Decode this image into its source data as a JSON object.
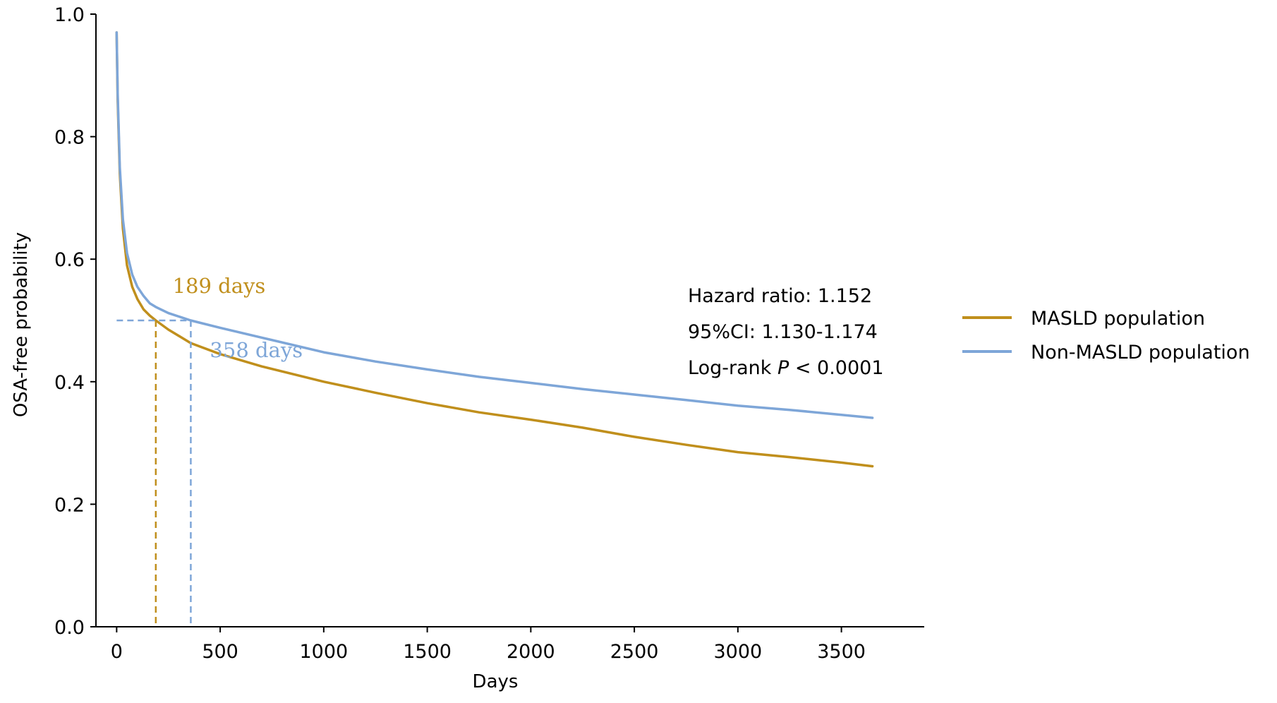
{
  "chart_data": {
    "type": "line",
    "xlabel": "Days",
    "ylabel": "OSA-free probability",
    "xlim": [
      -100,
      3900
    ],
    "ylim": [
      0.0,
      1.0
    ],
    "x_ticks": [
      0,
      500,
      1000,
      1500,
      2000,
      2500,
      3000,
      3500
    ],
    "y_ticks": [
      0.0,
      0.2,
      0.4,
      0.6,
      0.8,
      1.0
    ],
    "x_tick_labels": [
      "0",
      "500",
      "1000",
      "1500",
      "2000",
      "2500",
      "3000",
      "3500"
    ],
    "y_tick_labels": [
      "0.0",
      "0.2",
      "0.4",
      "0.6",
      "0.8",
      "1.0"
    ],
    "grid": false,
    "legend_position": "right",
    "series": [
      {
        "name": "MASLD population",
        "color": "#c08f1c",
        "x": [
          0,
          5,
          15,
          30,
          50,
          75,
          100,
          130,
          160,
          189,
          250,
          358,
          500,
          700,
          1000,
          1250,
          1500,
          1750,
          2000,
          2250,
          2500,
          2750,
          3000,
          3250,
          3500,
          3650
        ],
        "y": [
          0.97,
          0.86,
          0.74,
          0.65,
          0.59,
          0.555,
          0.535,
          0.518,
          0.508,
          0.5,
          0.485,
          0.463,
          0.445,
          0.425,
          0.4,
          0.382,
          0.365,
          0.35,
          0.338,
          0.325,
          0.31,
          0.297,
          0.285,
          0.277,
          0.268,
          0.262
        ]
      },
      {
        "name": "Non-MASLD population",
        "color": "#7ea6d8",
        "x": [
          0,
          5,
          15,
          30,
          50,
          75,
          100,
          130,
          160,
          189,
          250,
          358,
          500,
          700,
          1000,
          1250,
          1500,
          1750,
          2000,
          2250,
          2500,
          2750,
          3000,
          3250,
          3500,
          3650
        ],
        "y": [
          0.97,
          0.87,
          0.75,
          0.665,
          0.61,
          0.575,
          0.555,
          0.54,
          0.528,
          0.522,
          0.512,
          0.5,
          0.488,
          0.472,
          0.448,
          0.433,
          0.42,
          0.408,
          0.398,
          0.388,
          0.379,
          0.37,
          0.361,
          0.354,
          0.346,
          0.341
        ]
      }
    ],
    "reference_lines": {
      "horizontal_y": 0.5,
      "horizontal_x_range": [
        0,
        358
      ],
      "color": "#7ea6d8",
      "medians": [
        {
          "series": "MASLD population",
          "x": 189,
          "color": "#c08f1c"
        },
        {
          "series": "Non-MASLD population",
          "x": 358,
          "color": "#7ea6d8"
        }
      ]
    },
    "annotations": {
      "median_labels": [
        {
          "text": "189 days",
          "x": 270,
          "y": 0.545,
          "color": "#c08f1c"
        },
        {
          "text": "358 days",
          "x": 450,
          "y": 0.44,
          "color": "#7ea6d8"
        }
      ],
      "stats": [
        {
          "text": "Hazard ratio: 1.152"
        },
        {
          "text": "95%CI: 1.130-1.174"
        },
        {
          "prefix": "Log-rank ",
          "italic": "P",
          "suffix": " < 0.0001"
        }
      ]
    }
  }
}
